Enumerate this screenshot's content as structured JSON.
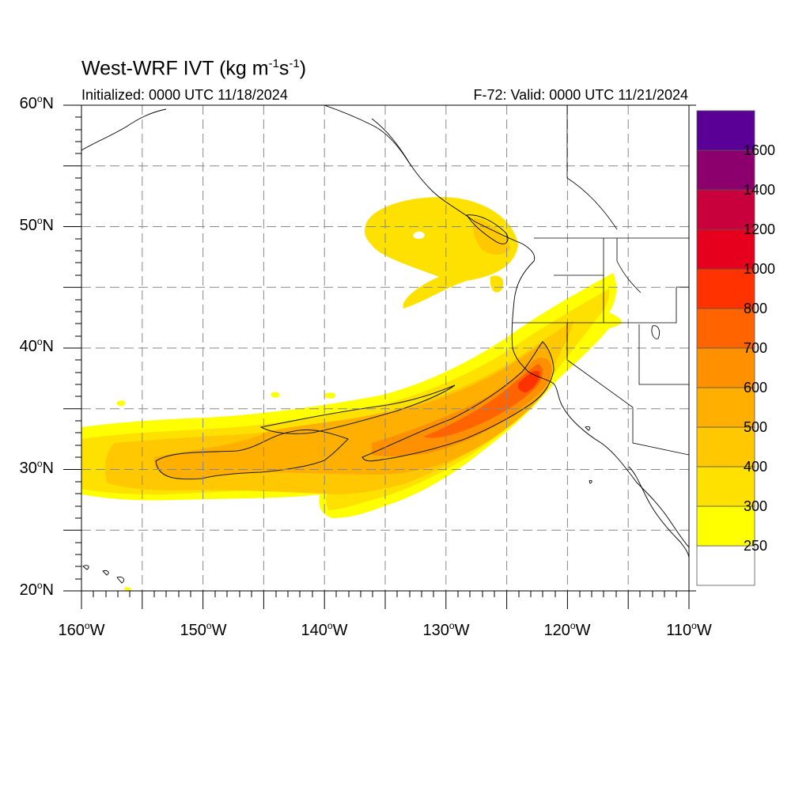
{
  "map": {
    "title_main": "West-WRF IVT (kg m",
    "title_exp1": "-1",
    "title_mid": "s",
    "title_exp2": "-1",
    "title_end": ")",
    "initialized": "Initialized: 0000 UTC 11/18/2024",
    "valid": "F-72: Valid: 0000 UTC 11/21/2024",
    "variable": "Integrated Vapor Transport",
    "projection": "cylindrical equidistant",
    "extent": {
      "lon_min": -160,
      "lon_max": -110,
      "lat_min": 20,
      "lat_max": 60
    },
    "lat_ticks": [
      {
        "value": 60,
        "num": "60",
        "hem": "N"
      },
      {
        "value": 50,
        "num": "50",
        "hem": "N"
      },
      {
        "value": 40,
        "num": "40",
        "hem": "N"
      },
      {
        "value": 30,
        "num": "30",
        "hem": "N"
      },
      {
        "value": 20,
        "num": "20",
        "hem": "N"
      }
    ],
    "lon_ticks": [
      {
        "value": -160,
        "num": "160",
        "hem": "W"
      },
      {
        "value": -150,
        "num": "150",
        "hem": "W"
      },
      {
        "value": -140,
        "num": "140",
        "hem": "W"
      },
      {
        "value": -130,
        "num": "130",
        "hem": "W"
      },
      {
        "value": -120,
        "num": "120",
        "hem": "W"
      },
      {
        "value": -110,
        "num": "110",
        "hem": "W"
      }
    ],
    "degree_symbol": "o",
    "gridline_interval_deg": 5,
    "colorbar": {
      "levels": [
        250,
        300,
        400,
        500,
        600,
        700,
        800,
        1000,
        1200,
        1400,
        1600
      ],
      "labels": [
        "250",
        "300",
        "400",
        "500",
        "600",
        "700",
        "800",
        "1000",
        "1200",
        "1400",
        "1600"
      ],
      "colors": [
        "#ffffff",
        "#ffff00",
        "#ffe100",
        "#ffc800",
        "#ffaf00",
        "#ff9100",
        "#ff6400",
        "#ff3200",
        "#e6001e",
        "#c8003c",
        "#8c006e",
        "#5a0096"
      ]
    },
    "contour_line_level": 500
  }
}
